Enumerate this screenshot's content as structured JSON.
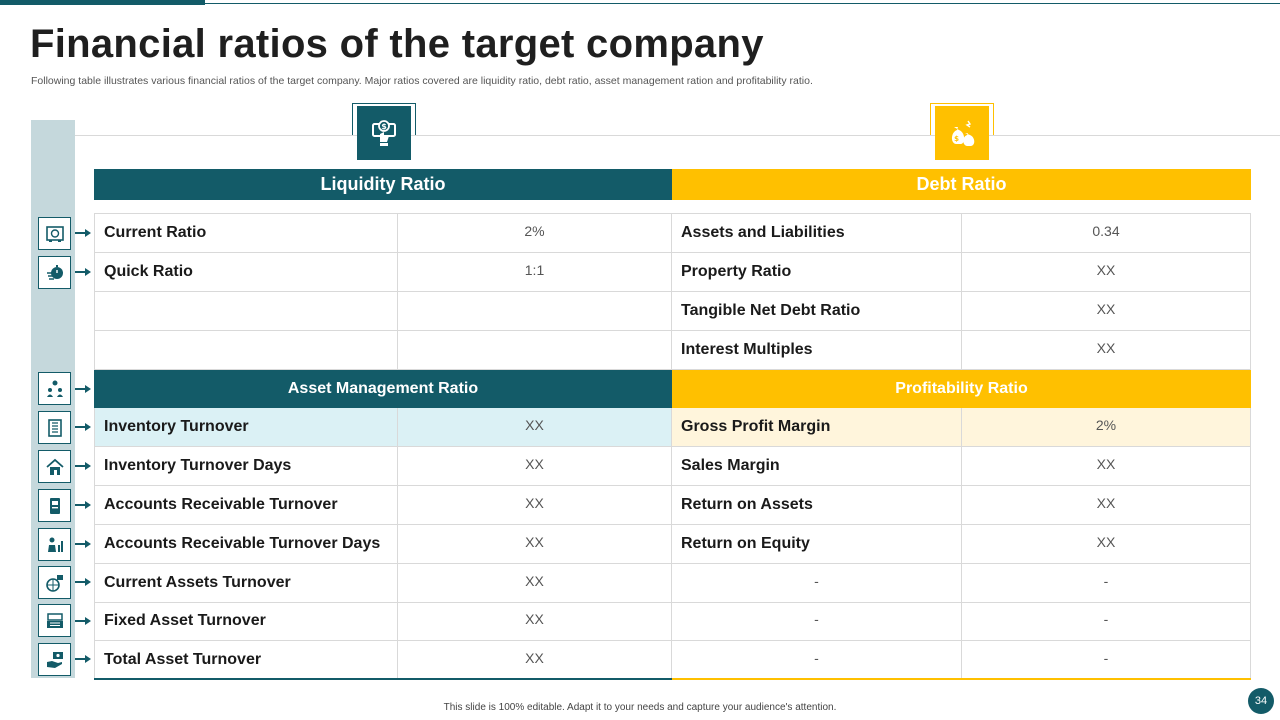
{
  "title": "Financial ratios of the target company",
  "subtitle": "Following table illustrates various financial ratios of the target company. Major ratios covered are liquidity ratio, debt ratio, asset management ration and profitability ratio.",
  "colors": {
    "teal": "#135b68",
    "yellow": "#ffc000",
    "band": "#c5d8dc",
    "teal_highlight": "#dbf1f5",
    "yellow_highlight": "#fff5dc"
  },
  "icons": {
    "liquidity": "money-hand-icon",
    "debt": "money-bags-icon"
  },
  "liquidity": {
    "header": "Liquidity Ratio",
    "rows": [
      {
        "label": "Current Ratio",
        "value": "2%"
      },
      {
        "label": "Quick Ratio",
        "value": "1:1"
      },
      {
        "label": "",
        "value": ""
      },
      {
        "label": "",
        "value": ""
      }
    ]
  },
  "debt": {
    "header": "Debt Ratio",
    "rows": [
      {
        "label": "Assets and Liabilities",
        "value": "0.34"
      },
      {
        "label": "Property Ratio",
        "value": "XX"
      },
      {
        "label": "Tangible Net Debt Ratio",
        "value": "XX"
      },
      {
        "label": "Interest Multiples",
        "value": "XX"
      }
    ]
  },
  "asset_management": {
    "header": "Asset Management Ratio",
    "rows": [
      {
        "label": "Inventory Turnover",
        "value": "XX"
      },
      {
        "label": "Inventory Turnover Days",
        "value": "XX"
      },
      {
        "label": "Accounts Receivable Turnover",
        "value": "XX"
      },
      {
        "label": "Accounts Receivable Turnover Days",
        "value": "XX"
      },
      {
        "label": "Current Assets Turnover",
        "value": "XX"
      },
      {
        "label": "Fixed Asset Turnover",
        "value": "XX"
      },
      {
        "label": "Total Asset Turnover",
        "value": "XX"
      }
    ]
  },
  "profitability": {
    "header": "Profitability  Ratio",
    "rows": [
      {
        "label": "Gross Profit Margin",
        "value": "2%"
      },
      {
        "label": "Sales Margin",
        "value": "XX"
      },
      {
        "label": "Return on Assets",
        "value": "XX"
      },
      {
        "label": "Return on Equity",
        "value": "XX"
      },
      {
        "label": "-",
        "value": "-"
      },
      {
        "label": "-",
        "value": "-"
      },
      {
        "label": "-",
        "value": "-"
      }
    ]
  },
  "side_icons": [
    "safe-icon",
    "stopwatch-hand-icon",
    "team-money-icon",
    "building-icon",
    "house-icon",
    "document-icon",
    "person-chart-icon",
    "money-globe-icon",
    "cash-register-icon",
    "hand-cash-icon"
  ],
  "footer": "This slide is 100% editable. Adapt it to your needs and capture your audience's attention.",
  "page_number": "34"
}
